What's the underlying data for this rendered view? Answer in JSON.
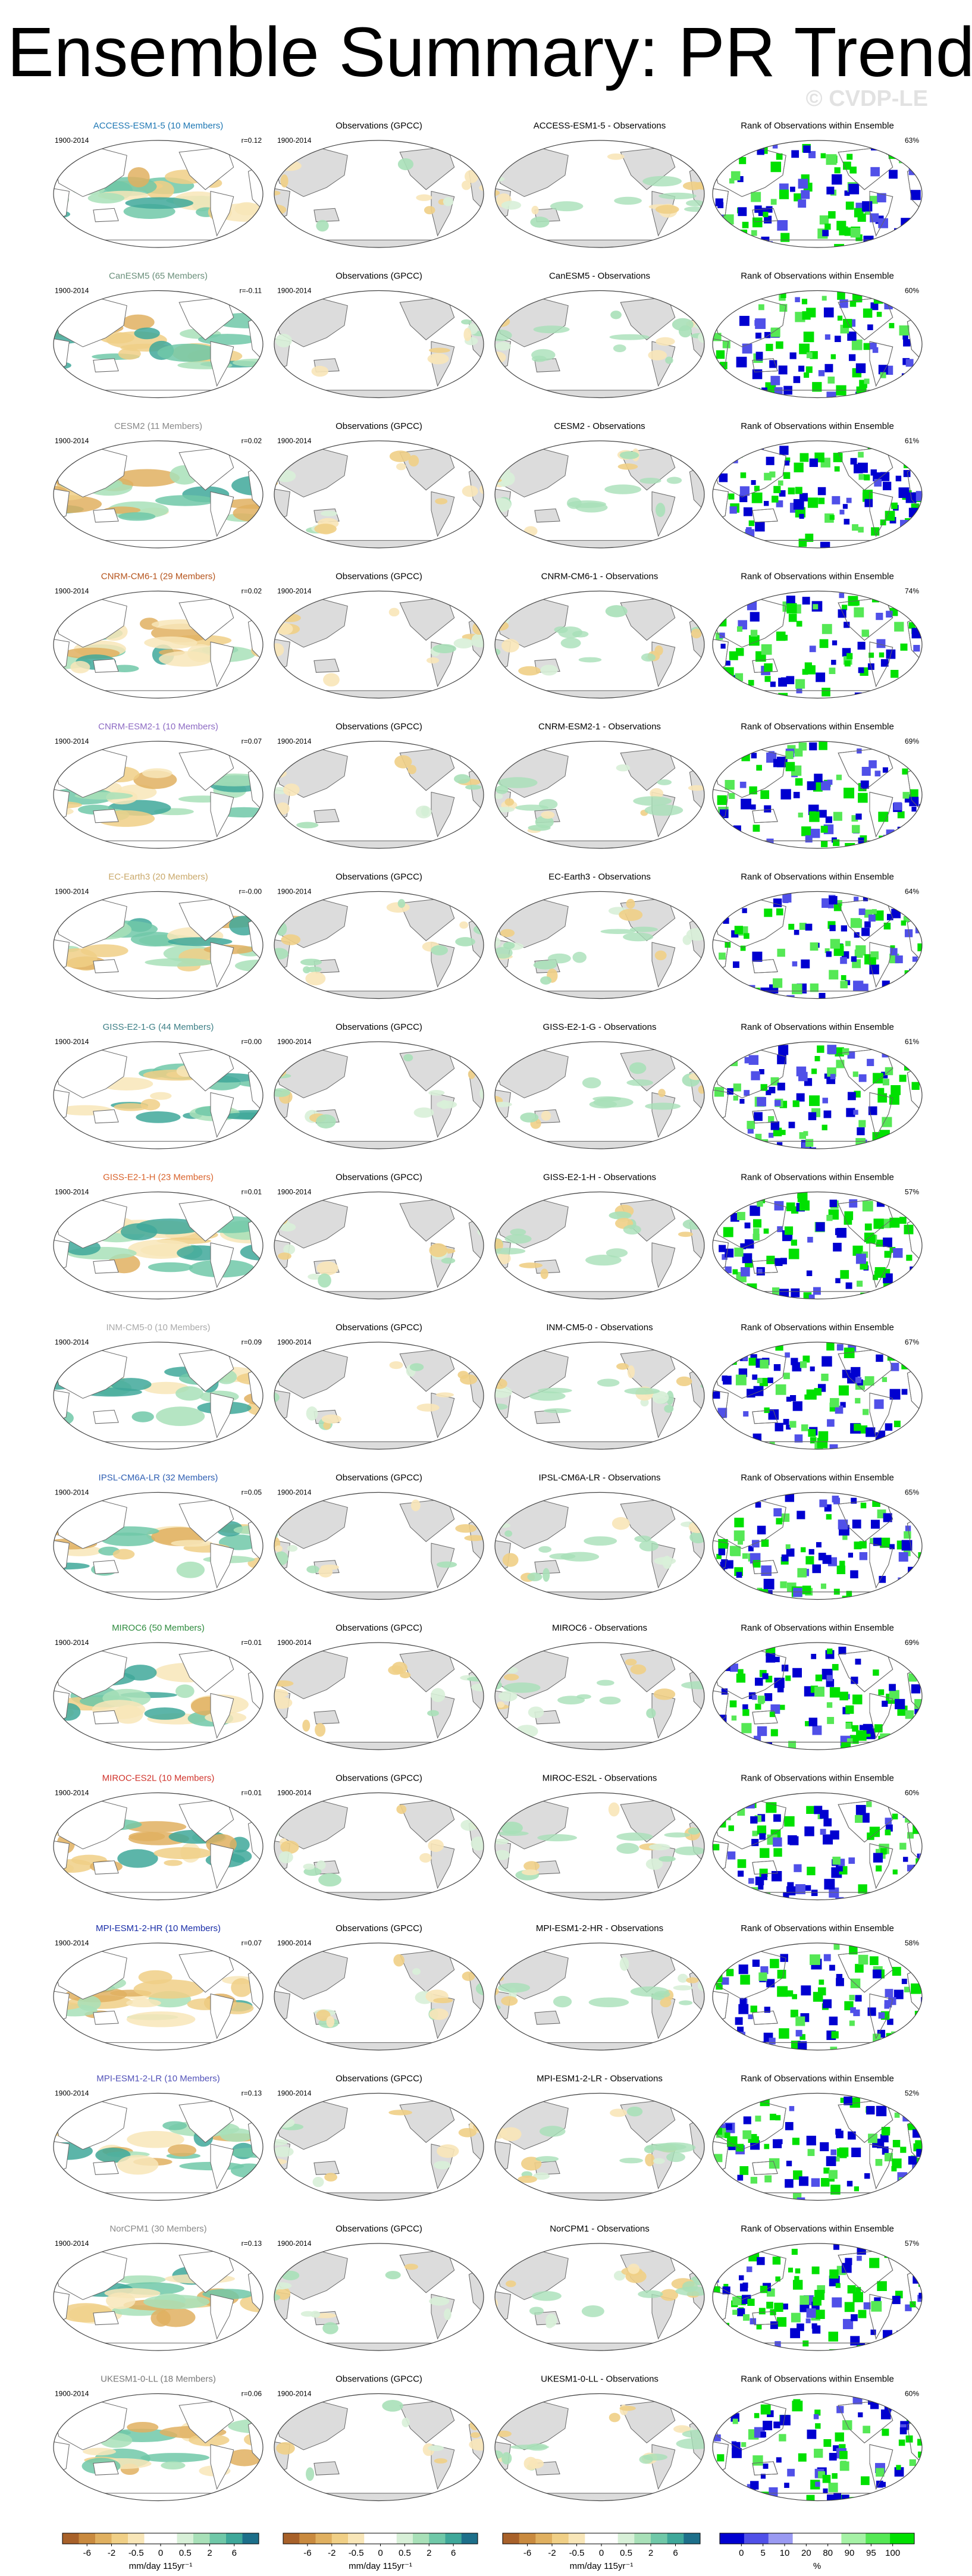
{
  "title": "Ensemble Summary: PR Trends JJA",
  "watermark": "© CVDP-LE",
  "rows": [
    {
      "model": "ACCESS-ESM1-5 (10 Members)",
      "color": "#1f78b4",
      "period": "1900-2014",
      "r": "r=0.12",
      "obs_title": "Observations (GPCC)",
      "obs_period": "1900-2014",
      "diff_title": "ACCESS-ESM1-5 - Observations",
      "rank_title": "Rank of Observations within Ensemble",
      "rank_pct": "63%"
    },
    {
      "model": "CanESM5 (65 Members)",
      "color": "#6a8f7a",
      "period": "1900-2014",
      "r": "r=-0.11",
      "obs_title": "Observations (GPCC)",
      "obs_period": "1900-2014",
      "diff_title": "CanESM5 - Observations",
      "rank_title": "Rank of Observations within Ensemble",
      "rank_pct": "60%"
    },
    {
      "model": "CESM2 (11 Members)",
      "color": "#888888",
      "period": "1900-2014",
      "r": "r=0.02",
      "obs_title": "Observations (GPCC)",
      "obs_period": "1900-2014",
      "diff_title": "CESM2 - Observations",
      "rank_title": "Rank of Observations within Ensemble",
      "rank_pct": "61%"
    },
    {
      "model": "CNRM-CM6-1 (29 Members)",
      "color": "#b5531b",
      "period": "1900-2014",
      "r": "r=0.02",
      "obs_title": "Observations (GPCC)",
      "obs_period": "1900-2014",
      "diff_title": "CNRM-CM6-1 - Observations",
      "rank_title": "Rank of Observations within Ensemble",
      "rank_pct": "74%"
    },
    {
      "model": "CNRM-ESM2-1 (10 Members)",
      "color": "#8e6cc4",
      "period": "1900-2014",
      "r": "r=0.07",
      "obs_title": "Observations (GPCC)",
      "obs_period": "1900-2014",
      "diff_title": "CNRM-ESM2-1 - Observations",
      "rank_title": "Rank of Observations within Ensemble",
      "rank_pct": "69%"
    },
    {
      "model": "EC-Earth3 (20 Members)",
      "color": "#c9a86a",
      "period": "1900-2014",
      "r": "r=-0.00",
      "obs_title": "Observations (GPCC)",
      "obs_period": "1900-2014",
      "diff_title": "EC-Earth3 - Observations",
      "rank_title": "Rank of Observations within Ensemble",
      "rank_pct": "64%"
    },
    {
      "model": "GISS-E2-1-G (44 Members)",
      "color": "#3d7f86",
      "period": "1900-2014",
      "r": "r=0.00",
      "obs_title": "Observations (GPCC)",
      "obs_period": "1900-2014",
      "diff_title": "GISS-E2-1-G - Observations",
      "rank_title": "Rank of Observations within Ensemble",
      "rank_pct": "61%"
    },
    {
      "model": "GISS-E2-1-H (23 Members)",
      "color": "#d9622b",
      "period": "1900-2014",
      "r": "r=0.01",
      "obs_title": "Observations (GPCC)",
      "obs_period": "1900-2014",
      "diff_title": "GISS-E2-1-H - Observations",
      "rank_title": "Rank of Observations within Ensemble",
      "rank_pct": "57%"
    },
    {
      "model": "INM-CM5-0 (10 Members)",
      "color": "#aaaaaa",
      "period": "1900-2014",
      "r": "r=0.09",
      "obs_title": "Observations (GPCC)",
      "obs_period": "1900-2014",
      "diff_title": "INM-CM5-0 - Observations",
      "rank_title": "Rank of Observations within Ensemble",
      "rank_pct": "67%"
    },
    {
      "model": "IPSL-CM6A-LR (32 Members)",
      "color": "#2f5fb3",
      "period": "1900-2014",
      "r": "r=0.05",
      "obs_title": "Observations (GPCC)",
      "obs_period": "1900-2014",
      "diff_title": "IPSL-CM6A-LR - Observations",
      "rank_title": "Rank of Observations within Ensemble",
      "rank_pct": "65%"
    },
    {
      "model": "MIROC6 (50 Members)",
      "color": "#2e8b3e",
      "period": "1900-2014",
      "r": "r=0.01",
      "obs_title": "Observations (GPCC)",
      "obs_period": "1900-2014",
      "diff_title": "MIROC6 - Observations",
      "rank_title": "Rank of Observations within Ensemble",
      "rank_pct": "69%"
    },
    {
      "model": "MIROC-ES2L (10 Members)",
      "color": "#d0342c",
      "period": "1900-2014",
      "r": "r=0.01",
      "obs_title": "Observations (GPCC)",
      "obs_period": "1900-2014",
      "diff_title": "MIROC-ES2L - Observations",
      "rank_title": "Rank of Observations within Ensemble",
      "rank_pct": "60%"
    },
    {
      "model": "MPI-ESM1-2-HR (10 Members)",
      "color": "#1a2ea8",
      "period": "1900-2014",
      "r": "r=0.07",
      "obs_title": "Observations (GPCC)",
      "obs_period": "1900-2014",
      "diff_title": "MPI-ESM1-2-HR - Observations",
      "rank_title": "Rank of Observations within Ensemble",
      "rank_pct": "58%"
    },
    {
      "model": "MPI-ESM1-2-LR (10 Members)",
      "color": "#5252b8",
      "period": "1900-2014",
      "r": "r=0.13",
      "obs_title": "Observations (GPCC)",
      "obs_period": "1900-2014",
      "diff_title": "MPI-ESM1-2-LR - Observations",
      "rank_title": "Rank of Observations within Ensemble",
      "rank_pct": "52%"
    },
    {
      "model": "NorCPM1 (30 Members)",
      "color": "#8a8a8a",
      "period": "1900-2014",
      "r": "r=0.13",
      "obs_title": "Observations (GPCC)",
      "obs_period": "1900-2014",
      "diff_title": "NorCPM1 - Observations",
      "rank_title": "Rank of Observations within Ensemble",
      "rank_pct": "57%"
    },
    {
      "model": "UKESM1-0-LL (18 Members)",
      "color": "#777777",
      "period": "1900-2014",
      "r": "r=0.06",
      "obs_title": "Observations (GPCC)",
      "obs_period": "1900-2014",
      "diff_title": "UKESM1-0-LL - Observations",
      "rank_title": "Rank of Observations within Ensemble",
      "rank_pct": "60%"
    }
  ],
  "colorbars": [
    {
      "ticks": [
        -6,
        -2,
        -0.5,
        0,
        0.5,
        2,
        6
      ],
      "label": "mm/day 115yr⁻¹",
      "colors": [
        "#a8612a",
        "#c98a3f",
        "#e0b060",
        "#f0cf86",
        "#f8e6b8",
        "#ffffff",
        "#ffffff",
        "#d8f0d8",
        "#a8e0b8",
        "#70c8a8",
        "#3fa89a",
        "#1d6f8a"
      ]
    },
    {
      "ticks": [
        -6,
        -2,
        -0.5,
        0,
        0.5,
        2,
        6
      ],
      "label": "mm/day 115yr⁻¹",
      "colors": [
        "#a8612a",
        "#c98a3f",
        "#e0b060",
        "#f0cf86",
        "#f8e6b8",
        "#ffffff",
        "#ffffff",
        "#d8f0d8",
        "#a8e0b8",
        "#70c8a8",
        "#3fa89a",
        "#1d6f8a"
      ]
    },
    {
      "ticks": [
        -6,
        -2,
        -0.5,
        0,
        0.5,
        2,
        6
      ],
      "label": "mm/day 115yr⁻¹",
      "colors": [
        "#a8612a",
        "#c98a3f",
        "#e0b060",
        "#f0cf86",
        "#f8e6b8",
        "#ffffff",
        "#ffffff",
        "#d8f0d8",
        "#a8e0b8",
        "#70c8a8",
        "#3fa89a",
        "#1d6f8a"
      ]
    },
    {
      "ticks": [
        0,
        5,
        10,
        20,
        80,
        90,
        95,
        100
      ],
      "label": "%",
      "colors": [
        "#0000d0",
        "#5050e8",
        "#9a9af2",
        "#ffffff",
        "#ffffff",
        "#a6f2a6",
        "#55e855",
        "#00e000"
      ]
    }
  ]
}
